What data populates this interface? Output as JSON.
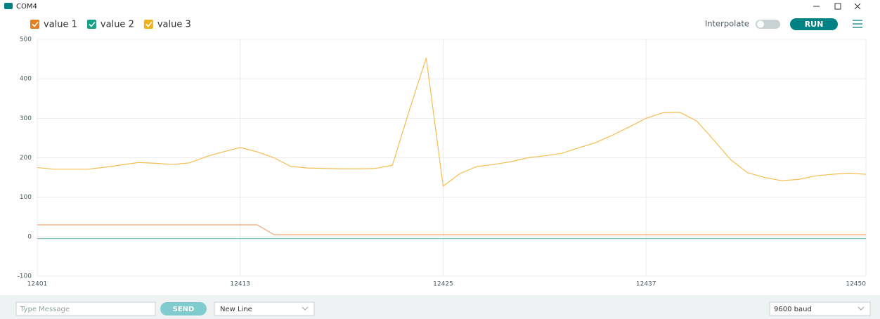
{
  "window": {
    "title": "COM4"
  },
  "toolbar": {
    "interpolate": "Interpolate",
    "run": "RUN"
  },
  "chart_data": {
    "type": "line",
    "x": [
      12401,
      12402,
      12403,
      12404,
      12405,
      12406,
      12407,
      12408,
      12409,
      12410,
      12411,
      12412,
      12413,
      12414,
      12415,
      12416,
      12417,
      12418,
      12419,
      12420,
      12421,
      12422,
      12423,
      12424,
      12425,
      12426,
      12427,
      12428,
      12429,
      12430,
      12431,
      12432,
      12433,
      12434,
      12435,
      12436,
      12437,
      12438,
      12439,
      12440,
      12441,
      12442,
      12443,
      12444,
      12445,
      12446,
      12447,
      12448,
      12449,
      12450
    ],
    "series": [
      {
        "name": "value 1",
        "color": "#e67e22",
        "line_color": "#f0a878",
        "values": [
          30,
          30,
          30,
          30,
          30,
          30,
          30,
          30,
          30,
          30,
          30,
          30,
          30,
          30,
          5,
          5,
          5,
          5,
          5,
          5,
          5,
          5,
          5,
          5,
          5,
          5,
          5,
          5,
          5,
          5,
          5,
          5,
          5,
          5,
          5,
          5,
          5,
          5,
          5,
          5,
          5,
          5,
          5,
          5,
          5,
          5,
          5,
          5,
          5,
          5
        ]
      },
      {
        "name": "value 2",
        "color": "#16a085",
        "line_color": "#7cc9bb",
        "values": [
          -5,
          -5,
          -5,
          -5,
          -5,
          -5,
          -5,
          -5,
          -5,
          -5,
          -5,
          -5,
          -5,
          -5,
          -5,
          -5,
          -5,
          -5,
          -5,
          -5,
          -5,
          -5,
          -5,
          -5,
          -5,
          -5,
          -5,
          -5,
          -5,
          -5,
          -5,
          -5,
          -5,
          -5,
          -5,
          -5,
          -5,
          -5,
          -5,
          -5,
          -5,
          -5,
          -5,
          -5,
          -5,
          -5,
          -5,
          -5,
          -5,
          -5
        ]
      },
      {
        "name": "value 3",
        "color": "#f1b31c",
        "line_color": "#f5bd50",
        "values": [
          175,
          171,
          171,
          171,
          176,
          182,
          188,
          186,
          183,
          187,
          203,
          215,
          226,
          215,
          200,
          178,
          174,
          173,
          172,
          172,
          173,
          181,
          320,
          453,
          128,
          160,
          178,
          183,
          190,
          200,
          205,
          211,
          225,
          238,
          257,
          278,
          300,
          314,
          315,
          293,
          245,
          195,
          162,
          150,
          142,
          145,
          154,
          158,
          161,
          158
        ]
      }
    ],
    "xlim": [
      12401,
      12450
    ],
    "xticks": [
      12401,
      12413,
      12425,
      12437,
      12450
    ],
    "ylim": [
      -100,
      500
    ],
    "yticks": [
      -100,
      0,
      100,
      200,
      300,
      400,
      500
    ],
    "grid": true
  },
  "footer": {
    "message_placeholder": "Type Message",
    "send": "SEND",
    "line_ending": "New Line",
    "baud": "9600 baud"
  }
}
